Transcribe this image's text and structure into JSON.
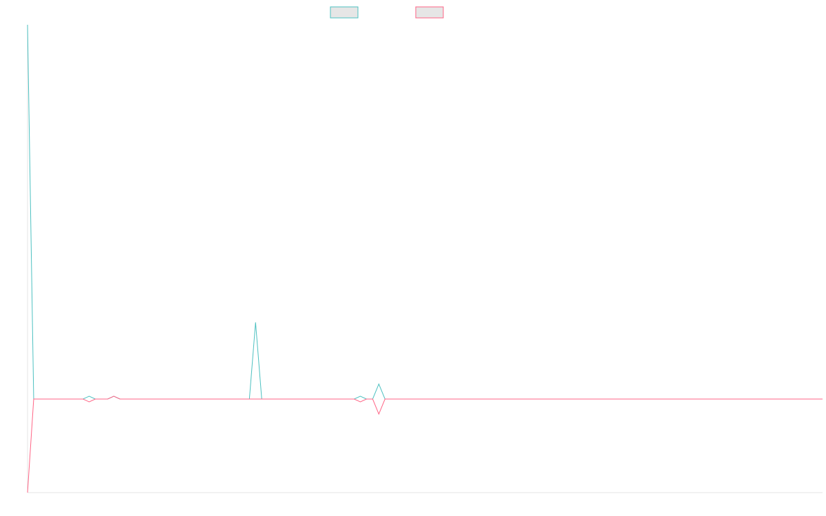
{
  "chart_data": {
    "type": "line",
    "title": "",
    "xlabel": "",
    "ylabel": "",
    "grid": false,
    "legend_position": "top-center",
    "n_points": 130,
    "ylim": [
      -1,
      4
    ],
    "series": [
      {
        "name": "",
        "color": "#4bc0c0",
        "points": [
          [
            0,
            4
          ],
          [
            1,
            0
          ],
          [
            9,
            0
          ],
          [
            10,
            0.03
          ],
          [
            11,
            0
          ],
          [
            13,
            0
          ],
          [
            14,
            0.03
          ],
          [
            15,
            0
          ],
          [
            36,
            0
          ],
          [
            37,
            0.82
          ],
          [
            38,
            0
          ],
          [
            53,
            0
          ],
          [
            54,
            0.03
          ],
          [
            55,
            0
          ],
          [
            56,
            0
          ],
          [
            57,
            0.16
          ],
          [
            58,
            0
          ],
          [
            129,
            0
          ]
        ]
      },
      {
        "name": "",
        "color": "#ff6384",
        "points": [
          [
            0,
            -1
          ],
          [
            1,
            0
          ],
          [
            9,
            0
          ],
          [
            10,
            -0.03
          ],
          [
            11,
            0
          ],
          [
            13,
            0
          ],
          [
            14,
            0.03
          ],
          [
            15,
            0
          ],
          [
            36,
            0
          ],
          [
            37,
            0
          ],
          [
            38,
            0
          ],
          [
            53,
            0
          ],
          [
            54,
            -0.03
          ],
          [
            55,
            0
          ],
          [
            56,
            0
          ],
          [
            57,
            -0.16
          ],
          [
            58,
            0
          ],
          [
            129,
            0
          ]
        ]
      }
    ]
  }
}
